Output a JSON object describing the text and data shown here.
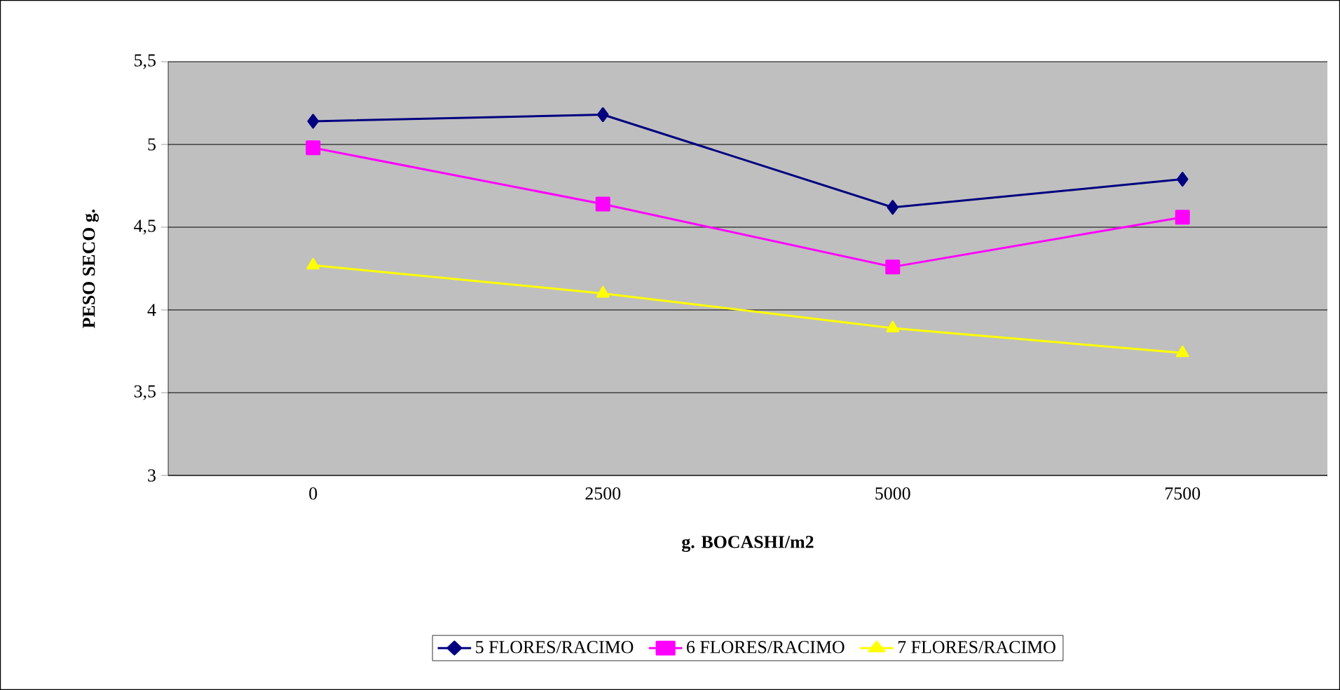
{
  "chart_data": {
    "type": "line",
    "xlabel": "g. BOCASHI/m2",
    "ylabel": "PESO SECO g.",
    "categories": [
      "0",
      "2500",
      "5000",
      "7500"
    ],
    "series": [
      {
        "name": "5 FLORES/RACIMO",
        "color": "#000080",
        "marker": "diamond",
        "values": [
          5.14,
          5.18,
          4.62,
          4.79
        ]
      },
      {
        "name": "6 FLORES/RACIMO",
        "color": "#ff00ff",
        "marker": "square",
        "values": [
          4.98,
          4.64,
          4.26,
          4.56
        ]
      },
      {
        "name": "7 FLORES/RACIMO",
        "color": "#ffff00",
        "marker": "triangle",
        "values": [
          4.27,
          4.1,
          3.89,
          3.74
        ]
      }
    ],
    "ylim": [
      3,
      5.5
    ],
    "yticks": [
      3,
      {
        "value": 3.5,
        "label": "3,5"
      },
      4,
      {
        "value": 4.5,
        "label": "4,5"
      },
      5,
      {
        "value": 5.5,
        "label": "5,5"
      }
    ],
    "grid": "y",
    "legend": "bottom"
  }
}
